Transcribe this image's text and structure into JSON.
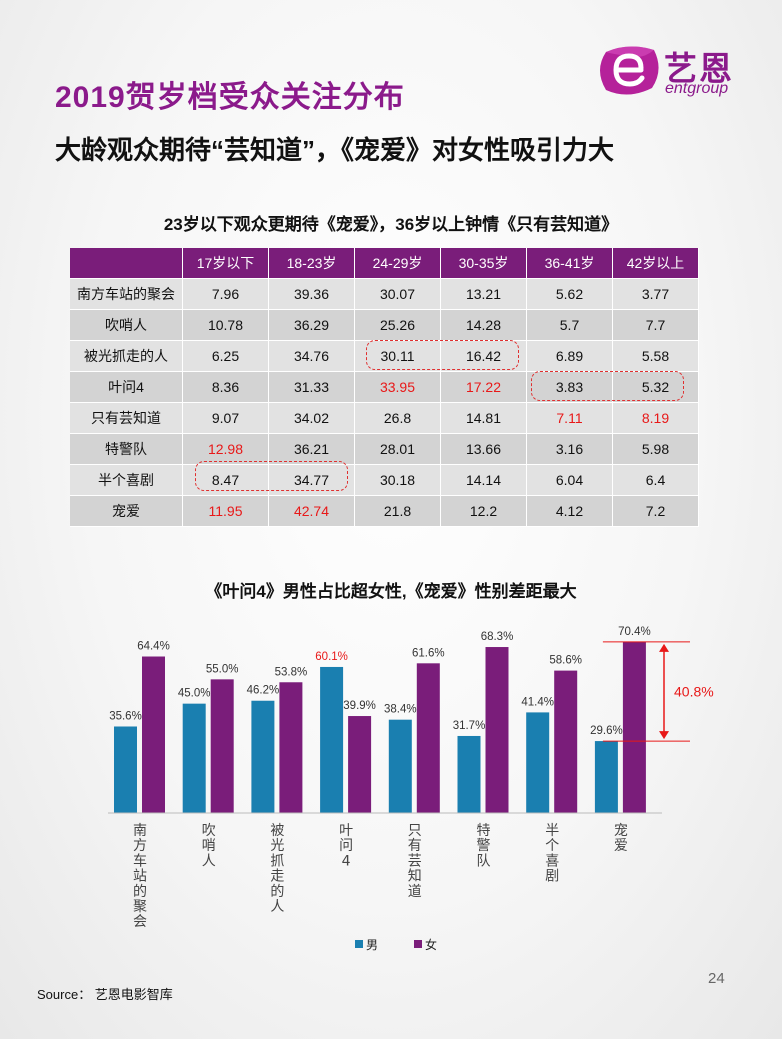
{
  "header": {
    "title": "2019贺岁档受众关注分布",
    "subtitle": "大龄观众期待“芸知道”，《宠爱》对女性吸引力大"
  },
  "logo": {
    "cn": "艺恩",
    "en": "entgroup",
    "icon": "entgroup-e-logo",
    "color": "#8b1a8b"
  },
  "table": {
    "title": "23岁以下观众更期待《宠爱》，36岁以上钟情《只有芸知道》",
    "columns": [
      "17岁以下",
      "18-23岁",
      "24-29岁",
      "30-35岁",
      "36-41岁",
      "42岁以上"
    ],
    "rows": [
      {
        "name": "南方车站的聚会",
        "values": [
          "7.96",
          "39.36",
          "30.07",
          "13.21",
          "5.62",
          "3.77"
        ],
        "highlight": []
      },
      {
        "name": "吹哨人",
        "values": [
          "10.78",
          "36.29",
          "25.26",
          "14.28",
          "5.7",
          "7.7"
        ],
        "highlight": []
      },
      {
        "name": "被光抓走的人",
        "values": [
          "6.25",
          "34.76",
          "30.11",
          "16.42",
          "6.89",
          "5.58"
        ],
        "highlight": []
      },
      {
        "name": "叶问4",
        "values": [
          "8.36",
          "31.33",
          "33.95",
          "17.22",
          "3.83",
          "5.32"
        ],
        "highlight": [
          2,
          3
        ]
      },
      {
        "name": "只有芸知道",
        "values": [
          "9.07",
          "34.02",
          "26.8",
          "14.81",
          "7.11",
          "8.19"
        ],
        "highlight": [
          4,
          5
        ]
      },
      {
        "name": "特警队",
        "values": [
          "12.98",
          "36.21",
          "28.01",
          "13.66",
          "3.16",
          "5.98"
        ],
        "highlight": [
          0
        ]
      },
      {
        "name": "半个喜剧",
        "values": [
          "8.47",
          "34.77",
          "30.18",
          "14.14",
          "6.04",
          "6.4"
        ],
        "highlight": []
      },
      {
        "name": "宠爱",
        "values": [
          "11.95",
          "42.74",
          "21.8",
          "12.2",
          "4.12",
          "7.2"
        ],
        "highlight": [
          0,
          1
        ]
      }
    ],
    "highlight_color": "#e81818"
  },
  "chart_data": {
    "type": "bar",
    "title": "《叶问4》男性占比超女性,《宠爱》性别差距最大",
    "categories": [
      "南方车站的聚会",
      "吹哨人",
      "被光抓走的人",
      "叶问4",
      "只有芸知道",
      "特警队",
      "半个喜剧",
      "宠爱"
    ],
    "series": [
      {
        "name": "男",
        "color": "#1a7fb0",
        "values": [
          35.6,
          45.0,
          46.2,
          60.1,
          38.4,
          31.7,
          41.4,
          29.6
        ],
        "labels": [
          "35.6%",
          "45.0%",
          "46.2%",
          "60.1%",
          "38.4%",
          "31.7%",
          "41.4%",
          "29.6%"
        ]
      },
      {
        "name": "女",
        "color": "#7a1d7a",
        "values": [
          64.4,
          55.0,
          53.8,
          39.9,
          61.6,
          68.3,
          58.6,
          70.4
        ],
        "labels": [
          "64.4%",
          "55.0%",
          "53.8%",
          "39.9%",
          "61.6%",
          "68.3%",
          "58.6%",
          "70.4%"
        ]
      }
    ],
    "highlighted_label": {
      "series": 0,
      "index": 3,
      "color": "#e81818"
    },
    "annotation": {
      "text": "40.8%",
      "category_index": 7,
      "color": "#e81818"
    },
    "ylim": [
      0,
      75
    ],
    "xlabel": "",
    "ylabel": "",
    "legend": "bottom",
    "grid": false
  },
  "footer": {
    "page_number": "24",
    "source": "Source： 艺恩电影智库"
  }
}
